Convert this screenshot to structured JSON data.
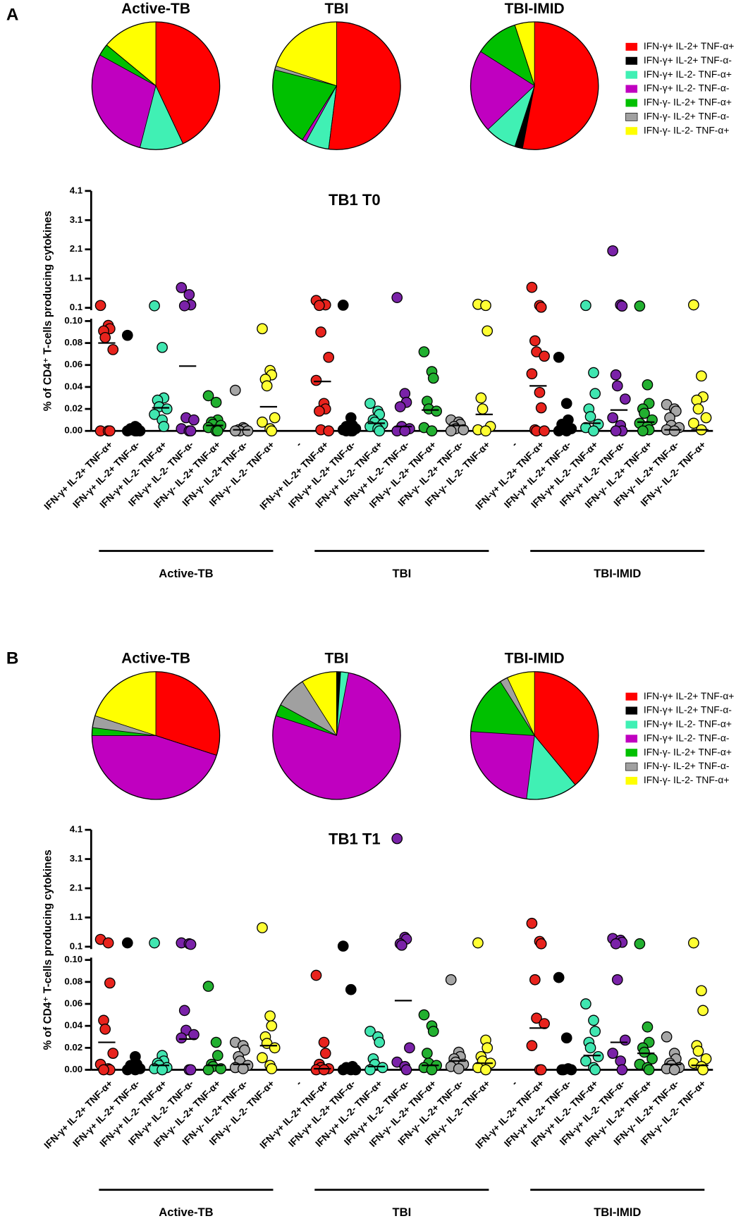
{
  "panel_labels": [
    "A",
    "B"
  ],
  "chart_data": [
    {
      "type": "pie",
      "title": "Active-TB",
      "categories": [
        "IFN-γ+ IL-2+ TNF-α+",
        "IFN-γ+ IL-2+ TNF-α-",
        "IFN-γ+ IL-2- TNF-α+",
        "IFN-γ+ IL-2- TNF-α-",
        "IFN-γ- IL-2+ TNF-α+",
        "IFN-γ- IL-2+ TNF-α-",
        "IFN-γ- IL-2- TNF-α+"
      ],
      "colors": [
        "#ff0000",
        "#000000",
        "#40f0b4",
        "#c000c0",
        "#00c000",
        "#a0a0a0",
        "#ffff00"
      ],
      "values": [
        43,
        0,
        11,
        29,
        3,
        0,
        14
      ]
    },
    {
      "type": "pie",
      "title": "TBI",
      "categories": [
        "IFN-γ+ IL-2+ TNF-α+",
        "IFN-γ+ IL-2+ TNF-α-",
        "IFN-γ+ IL-2- TNF-α+",
        "IFN-γ+ IL-2- TNF-α-",
        "IFN-γ- IL-2+ TNF-α+",
        "IFN-γ- IL-2+ TNF-α-",
        "IFN-γ- IL-2- TNF-α+"
      ],
      "colors": [
        "#ff0000",
        "#000000",
        "#40f0b4",
        "#c000c0",
        "#00c000",
        "#a0a0a0",
        "#ffff00"
      ],
      "values": [
        52,
        0,
        6,
        1,
        20,
        1,
        20
      ]
    },
    {
      "type": "pie",
      "title": "TBI-IMID",
      "legend": true,
      "categories": [
        "IFN-γ+ IL-2+ TNF-α+",
        "IFN-γ+ IL-2+ TNF-α-",
        "IFN-γ+ IL-2- TNF-α+",
        "IFN-γ+ IL-2- TNF-α-",
        "IFN-γ- IL-2+ TNF-α+",
        "IFN-γ- IL-2+ TNF-α-",
        "IFN-γ- IL-2- TNF-α+"
      ],
      "colors": [
        "#ff0000",
        "#000000",
        "#40f0b4",
        "#c000c0",
        "#00c000",
        "#a0a0a0",
        "#ffff00"
      ],
      "values": [
        53,
        2,
        8,
        21,
        11,
        0,
        5
      ]
    },
    {
      "type": "dot",
      "title": "TB1 T0",
      "ylabel": "% of CD4⁺ T-cells producing cytokines",
      "categories": [
        "IFN-γ+ IL-2+ TNF-α+",
        "IFN-γ+ IL-2+ TNF-α-",
        "IFN-γ+ IL-2- TNF-α+",
        "IFN-γ+ IL-2- TNF-α-",
        "IFN-γ- IL-2+ TNF-α+",
        "IFN-γ- IL-2+ TNF-α-",
        "IFN-γ- IL-2- TNF-α+",
        "-",
        "IFN-γ+ IL-2+ TNF-α+",
        "IFN-γ+ IL-2+ TNF-α-",
        "IFN-γ+ IL-2- TNF-α+",
        "IFN-γ+ IL-2- TNF-α-",
        "IFN-γ- IL-2+ TNF-α+",
        "IFN-γ- IL-2+ TNF-α-",
        "IFN-γ- IL-2- TNF-α+",
        "-",
        "IFN-γ+ IL-2+ TNF-α+",
        "IFN-γ+ IL-2+ TNF-α-",
        "IFN-γ+ IL-2- TNF-α+",
        "IFN-γ+ IL-2- TNF-α-",
        "IFN-γ- IL-2+ TNF-α+",
        "IFN-γ- IL-2+ TNF-α-",
        "IFN-γ- IL-2- TNF-α+"
      ],
      "colors": [
        "#e8231d",
        "#000000",
        "#40e6b0",
        "#7a22a8",
        "#22b030",
        "#a6a6a6",
        "#ffff33",
        null,
        "#e8231d",
        "#000000",
        "#40e6b0",
        "#7a22a8",
        "#22b030",
        "#a6a6a6",
        "#ffff33",
        null,
        "#e8231d",
        "#000000",
        "#40e6b0",
        "#7a22a8",
        "#22b030",
        "#a6a6a6",
        "#ffff33"
      ],
      "group_labels": [
        "Active-TB",
        "TBI",
        "TBI-IMID"
      ],
      "points": [
        [
          0.18,
          0.096,
          0.093,
          0.091,
          0.085,
          0.074,
          0,
          0,
          0
        ],
        [
          0.087,
          0.004,
          0.003,
          0.002,
          0.001,
          0,
          0,
          0,
          0
        ],
        [
          0.17,
          0.076,
          0.03,
          0.028,
          0.022,
          0.02,
          0.015,
          0.01,
          0.004
        ],
        [
          0.79,
          0.55,
          0.2,
          0.17,
          0.012,
          0.01,
          0.002,
          0,
          0
        ],
        [
          0.032,
          0.026,
          0.01,
          0.008,
          0.006,
          0.005,
          0.003,
          0,
          0
        ],
        [
          0.037,
          0.003,
          0.002,
          0.001,
          0,
          0,
          0
        ],
        [
          0.093,
          0.055,
          0.051,
          0.047,
          0.041,
          0.012,
          0.008,
          0.002,
          0
        ],
        [],
        [
          0.35,
          0.22,
          0.2,
          0.18,
          0.09,
          0.067,
          0.046,
          0.025,
          0.02,
          0.018,
          0.001,
          0
        ],
        [
          0.19,
          0.012,
          0.005,
          0.004,
          0.003,
          0.002,
          0.001,
          0,
          0,
          0
        ],
        [
          0.025,
          0.018,
          0.015,
          0.01,
          0.008,
          0.006,
          0.004,
          0.002,
          0
        ],
        [
          0.45,
          0.034,
          0.026,
          0.022,
          0.004,
          0.002,
          0,
          0
        ],
        [
          0.072,
          0.054,
          0.048,
          0.027,
          0.02,
          0.018,
          0.003,
          0
        ],
        [
          0.01,
          0.008,
          0.006,
          0.004,
          0.002,
          0.001,
          0
        ],
        [
          0.22,
          0.18,
          0.091,
          0.03,
          0.02,
          0.004,
          0.001,
          0
        ],
        [],
        [
          0.8,
          0.18,
          0.12,
          0.082,
          0.072,
          0.068,
          0.052,
          0.035,
          0.021,
          0.001,
          0,
          0
        ],
        [
          0.067,
          0.025,
          0.01,
          0.006,
          0.004,
          0.002,
          0,
          0
        ],
        [
          0.18,
          0.053,
          0.034,
          0.02,
          0.013,
          0.006,
          0.003,
          0
        ],
        [
          2.05,
          0.2,
          0.16,
          0.051,
          0.041,
          0.029,
          0.012,
          0.005,
          0,
          0
        ],
        [
          0.16,
          0.042,
          0.025,
          0.02,
          0.016,
          0.01,
          0.007,
          0.004,
          0.001,
          0
        ],
        [
          0.024,
          0.02,
          0.018,
          0.012,
          0.005,
          0.003,
          0.001,
          0
        ],
        [
          0.2,
          0.05,
          0.031,
          0.028,
          0.02,
          0.012,
          0.007,
          0.001
        ]
      ],
      "medians": [
        0.08,
        0.002,
        0.021,
        0.059,
        0.005,
        0.001,
        0.022,
        null,
        0.045,
        0.002,
        0.007,
        0.004,
        0.019,
        0.005,
        0.015,
        null,
        0.041,
        0.003,
        0.007,
        0.019,
        0.008,
        0.001,
        0.001
      ],
      "ylim": [
        0,
        0.1
      ],
      "yticks": [
        {
          "value": 0,
          "label": "0.00"
        },
        0.02,
        0.04,
        0.06,
        0.08,
        {
          "value": 0.1,
          "label": "0.10"
        }
      ],
      "ylim_upper": [
        0.1,
        4.1
      ],
      "yticks_upper": [
        0.1,
        1.1,
        2.1,
        3.1,
        4.1
      ]
    },
    {
      "type": "pie",
      "title": "Active-TB",
      "categories": [
        "IFN-γ+ IL-2+ TNF-α+",
        "IFN-γ+ IL-2+ TNF-α-",
        "IFN-γ+ IL-2- TNF-α+",
        "IFN-γ+ IL-2- TNF-α-",
        "IFN-γ- IL-2+ TNF-α+",
        "IFN-γ- IL-2+ TNF-α-",
        "IFN-γ- IL-2- TNF-α+"
      ],
      "colors": [
        "#ff0000",
        "#000000",
        "#40f0b4",
        "#c000c0",
        "#00c000",
        "#a0a0a0",
        "#ffff00"
      ],
      "values": [
        30,
        0,
        0,
        45,
        2,
        3,
        20
      ]
    },
    {
      "type": "pie",
      "title": "TBI",
      "categories": [
        "IFN-γ+ IL-2+ TNF-α+",
        "IFN-γ+ IL-2+ TNF-α-",
        "IFN-γ+ IL-2- TNF-α+",
        "IFN-γ+ IL-2- TNF-α-",
        "IFN-γ- IL-2+ TNF-α+",
        "IFN-γ- IL-2+ TNF-α-",
        "IFN-γ- IL-2- TNF-α+"
      ],
      "colors": [
        "#ff0000",
        "#000000",
        "#40f0b4",
        "#c000c0",
        "#00c000",
        "#a0a0a0",
        "#ffff00"
      ],
      "values": [
        0,
        1,
        2,
        77,
        3,
        8,
        9
      ]
    },
    {
      "type": "pie",
      "title": "TBI-IMID",
      "legend": true,
      "categories": [
        "IFN-γ+ IL-2+ TNF-α+",
        "IFN-γ+ IL-2+ TNF-α-",
        "IFN-γ+ IL-2- TNF-α+",
        "IFN-γ+ IL-2- TNF-α-",
        "IFN-γ- IL-2+ TNF-α+",
        "IFN-γ- IL-2+ TNF-α-",
        "IFN-γ- IL-2- TNF-α+"
      ],
      "colors": [
        "#ff0000",
        "#000000",
        "#40f0b4",
        "#c000c0",
        "#00c000",
        "#a0a0a0",
        "#ffff00"
      ],
      "values": [
        39,
        0,
        13,
        24,
        15,
        2,
        7
      ]
    },
    {
      "type": "dot",
      "title": "TB1 T1",
      "ylabel": "% of CD4⁺ T-cells producing cytokines",
      "categories": [
        "IFN-γ+ IL-2+ TNF-α+",
        "IFN-γ+ IL-2+ TNF-α-",
        "IFN-γ+ IL-2- TNF-α+",
        "IFN-γ+ IL-2- TNF-α-",
        "IFN-γ- IL-2+ TNF-α+",
        "IFN-γ- IL-2+ TNF-α-",
        "IFN-γ- IL-2- TNF-α+",
        "-",
        "IFN-γ+ IL-2+ TNF-α+",
        "IFN-γ+ IL-2+ TNF-α-",
        "IFN-γ+ IL-2- TNF-α+",
        "IFN-γ+ IL-2- TNF-α-",
        "IFN-γ- IL-2+ TNF-α+",
        "IFN-γ- IL-2+ TNF-α-",
        "IFN-γ- IL-2- TNF-α+",
        "-",
        "IFN-γ+ IL-2+ TNF-α+",
        "IFN-γ+ IL-2+ TNF-α-",
        "IFN-γ+ IL-2- TNF-α+",
        "IFN-γ+ IL-2- TNF-α-",
        "IFN-γ- IL-2+ TNF-α+",
        "IFN-γ- IL-2+ TNF-α-",
        "IFN-γ- IL-2- TNF-α+"
      ],
      "colors": [
        "#e8231d",
        "#000000",
        "#40e6b0",
        "#7a22a8",
        "#22b030",
        "#a6a6a6",
        "#ffff33",
        null,
        "#e8231d",
        "#000000",
        "#40e6b0",
        "#7a22a8",
        "#22b030",
        "#a6a6a6",
        "#ffff33",
        null,
        "#e8231d",
        "#000000",
        "#40e6b0",
        "#7a22a8",
        "#22b030",
        "#a6a6a6",
        "#ffff33"
      ],
      "group_labels": [
        "Active-TB",
        "TBI",
        "TBI-IMID"
      ],
      "points": [
        [
          0.35,
          0.23,
          0.079,
          0.045,
          0.037,
          0.015,
          0.005,
          0.001,
          0,
          0
        ],
        [
          0.23,
          0.012,
          0.005,
          0.004,
          0.002,
          0.001,
          0,
          0
        ],
        [
          0.23,
          0.013,
          0.008,
          0.006,
          0.004,
          0.002,
          0.001,
          0
        ],
        [
          0.23,
          0.2,
          0.18,
          0.054,
          0.036,
          0.032,
          0.029,
          0,
          0
        ],
        [
          0.076,
          0.025,
          0.013,
          0.005,
          0.003,
          0.001,
          0
        ],
        [
          0.025,
          0.022,
          0.018,
          0.012,
          0.008,
          0.004,
          0.002,
          0.001
        ],
        [
          0.75,
          0.049,
          0.04,
          0.03,
          0.024,
          0.02,
          0.011,
          0.004,
          0.001
        ],
        [],
        [
          0.086,
          0.025,
          0.015,
          0.005,
          0.002,
          0.001,
          0,
          0
        ],
        [
          0.12,
          0.073,
          0.003,
          0.002,
          0.001,
          0,
          0,
          0
        ],
        [
          0.035,
          0.03,
          0.025,
          0.01,
          0.005,
          0.002,
          0
        ],
        [
          3.8,
          0.42,
          0.36,
          0.2,
          0.15,
          0.02,
          0.007,
          0.003,
          0
        ],
        [
          0.05,
          0.04,
          0.035,
          0.015,
          0.006,
          0.004,
          0.002,
          0
        ],
        [
          0.082,
          0.016,
          0.012,
          0.01,
          0.007,
          0.005,
          0.003,
          0.001
        ],
        [
          0.23,
          0.027,
          0.02,
          0.012,
          0.008,
          0.006,
          0.002,
          0
        ],
        [],
        [
          0.9,
          0.28,
          0.2,
          0.082,
          0.047,
          0.042,
          0.022,
          0,
          0
        ],
        [
          0.084,
          0.029,
          0.001,
          0,
          0,
          0
        ],
        [
          0.06,
          0.045,
          0.035,
          0.025,
          0.02,
          0.012,
          0.008,
          0.002,
          0
        ],
        [
          0.38,
          0.32,
          0.25,
          0.2,
          0.082,
          0.027,
          0.015,
          0.008,
          0
        ],
        [
          0.2,
          0.039,
          0.025,
          0.02,
          0.016,
          0.01,
          0.005,
          0.002,
          0
        ],
        [
          0.03,
          0.015,
          0.01,
          0.006,
          0.004,
          0.002,
          0.001,
          0
        ],
        [
          0.23,
          0.072,
          0.054,
          0.022,
          0.017,
          0.01,
          0.006,
          0.003,
          0
        ]
      ],
      "medians": [
        0.025,
        0.002,
        0.004,
        0.028,
        0.004,
        0.005,
        0.022,
        null,
        0.001,
        0.001,
        0.003,
        0.063,
        0.004,
        0.008,
        0.006,
        null,
        0.038,
        0,
        0.013,
        0.025,
        0.015,
        0.005,
        0.004
      ],
      "ylim": [
        0,
        0.1
      ],
      "yticks": [
        {
          "value": 0,
          "label": "0.00"
        },
        0.02,
        0.04,
        0.06,
        0.08,
        {
          "value": 0.1,
          "label": "0.10"
        }
      ],
      "ylim_upper": [
        0.1,
        4.1
      ],
      "yticks_upper": [
        0.1,
        1.1,
        2.1,
        3.1,
        4.1
      ]
    }
  ]
}
